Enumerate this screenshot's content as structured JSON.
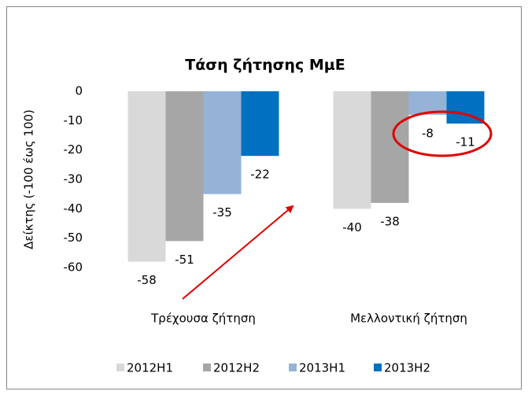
{
  "chart_data": {
    "type": "bar",
    "title": "Τάση ζήτησης ΜμΕ",
    "y_label": "Δείκτης (-100 έως 100)",
    "categories": [
      "Τρέχουσα ζήτηση",
      "Μελλοντική ζήτηση"
    ],
    "series": [
      {
        "name": "2012H1",
        "color": "#d9d9d9",
        "values": [
          -58,
          -40
        ]
      },
      {
        "name": "2012H2",
        "color": "#a6a6a6",
        "values": [
          -51,
          -38
        ]
      },
      {
        "name": "2013H1",
        "color": "#95b3d7",
        "values": [
          -35,
          -8
        ]
      },
      {
        "name": "2013H2",
        "color": "#0070c0",
        "values": [
          -22,
          -11
        ]
      }
    ],
    "ylim": [
      -60,
      0
    ],
    "yticks": [
      0,
      -10,
      -20,
      -30,
      -40,
      -50,
      -60
    ],
    "legend": "bottom"
  }
}
